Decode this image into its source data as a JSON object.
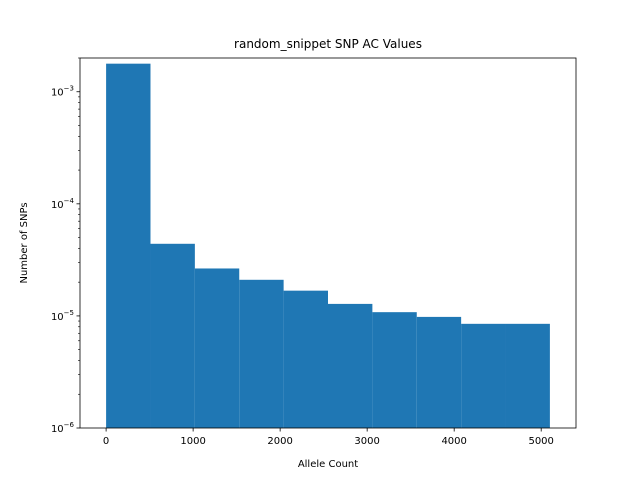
{
  "chart_data": {
    "type": "bar",
    "title": "random_snippet SNP AC Values",
    "xlabel": "Allele Count",
    "ylabel": "Number of SNPs",
    "xlim": [
      -300,
      5400
    ],
    "ylim": [
      1e-06,
      0.002
    ],
    "yscale": "log",
    "grid": false,
    "bar_color": "#1f77b4",
    "x_ticks": [
      {
        "value": 0,
        "label": "0"
      },
      {
        "value": 1000,
        "label": "1000"
      },
      {
        "value": 2000,
        "label": "2000"
      },
      {
        "value": 3000,
        "label": "3000"
      },
      {
        "value": 4000,
        "label": "4000"
      },
      {
        "value": 5000,
        "label": "5000"
      }
    ],
    "y_ticks": [
      {
        "value": 1e-06,
        "base": "10",
        "exp": "−6"
      },
      {
        "value": 1e-05,
        "base": "10",
        "exp": "−5"
      },
      {
        "value": 0.0001,
        "base": "10",
        "exp": "−4"
      },
      {
        "value": 0.001,
        "base": "10",
        "exp": "−3"
      }
    ],
    "bin_edges": [
      0,
      510,
      1020,
      1530,
      2040,
      2550,
      3060,
      3570,
      4080,
      4590,
      5100
    ],
    "values": [
      0.00178,
      4.4e-05,
      2.65e-05,
      2.1e-05,
      1.68e-05,
      1.28e-05,
      1.08e-05,
      9.8e-06,
      8.5e-06,
      8.5e-06
    ]
  }
}
